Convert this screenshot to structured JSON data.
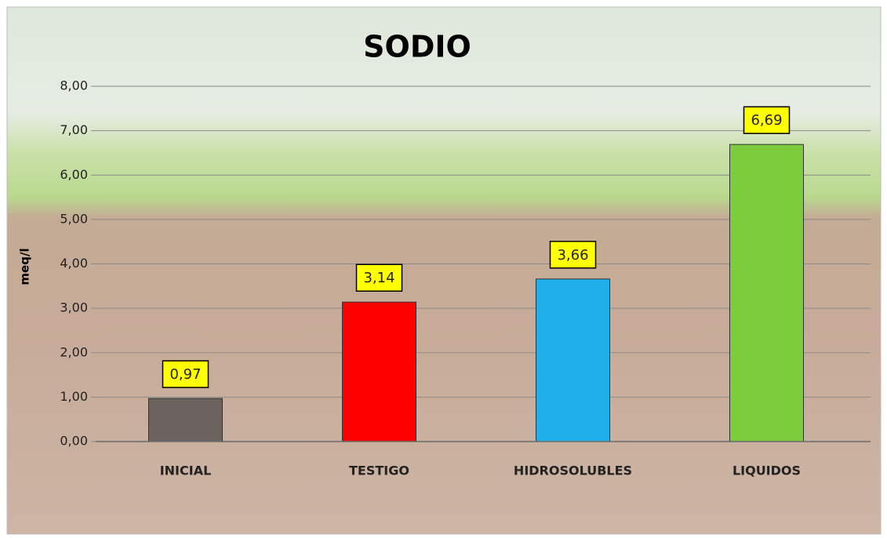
{
  "chart_data": {
    "type": "bar",
    "title": "SODIO",
    "y_label": "meq/l",
    "categories": [
      "INICIAL",
      "TESTIGO",
      "HIDROSOLUBLES",
      "LIQUIDOS"
    ],
    "values": [
      0.97,
      3.14,
      3.66,
      6.69
    ],
    "value_labels": [
      "0,97",
      "3,14",
      "3,66",
      "6,69"
    ],
    "colors": [
      "#6b6360",
      "#ff0000",
      "#1fb0ec",
      "#7dcc3e"
    ],
    "ylim": [
      0,
      8
    ],
    "yticks": [
      {
        "value": 0,
        "label": "0,00"
      },
      {
        "value": 1,
        "label": "1,00"
      },
      {
        "value": 2,
        "label": "2,00"
      },
      {
        "value": 3,
        "label": "3,00"
      },
      {
        "value": 4,
        "label": "4,00"
      },
      {
        "value": 5,
        "label": "5,00"
      },
      {
        "value": 6,
        "label": "6,00"
      },
      {
        "value": 7,
        "label": "7,00"
      },
      {
        "value": 8,
        "label": "8,00"
      }
    ],
    "grid": true
  }
}
